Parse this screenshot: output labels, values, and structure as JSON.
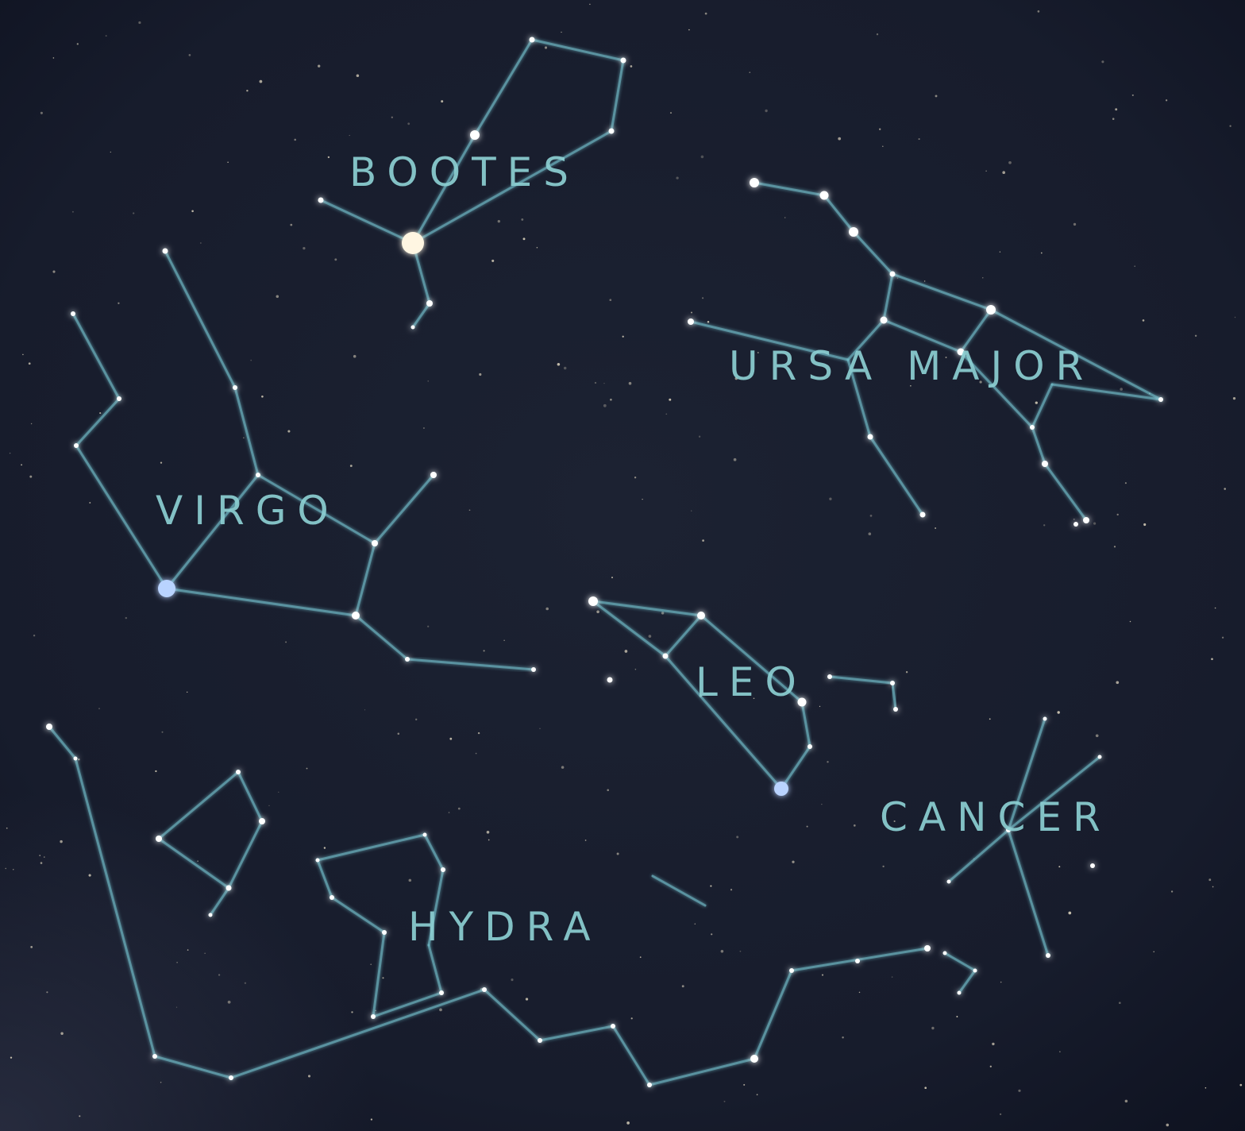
{
  "colors": {
    "sky_center": "#1c2232",
    "sky_edge": "#0e1220",
    "line": "#6fb9c6",
    "label": "#8ccfd2",
    "star": "#ffffff",
    "blue_star": "#b9d3ff",
    "bright_star": "#fff6e2"
  },
  "constellations": [
    {
      "id": "bootes",
      "label": "BOOTES"
    },
    {
      "id": "ursa-major",
      "label": "URSA MAJOR"
    },
    {
      "id": "virgo",
      "label": "VIRGO"
    },
    {
      "id": "leo",
      "label": "LEO"
    },
    {
      "id": "cancer",
      "label": "CANCER"
    },
    {
      "id": "hydra",
      "label": "HYDRA"
    }
  ]
}
